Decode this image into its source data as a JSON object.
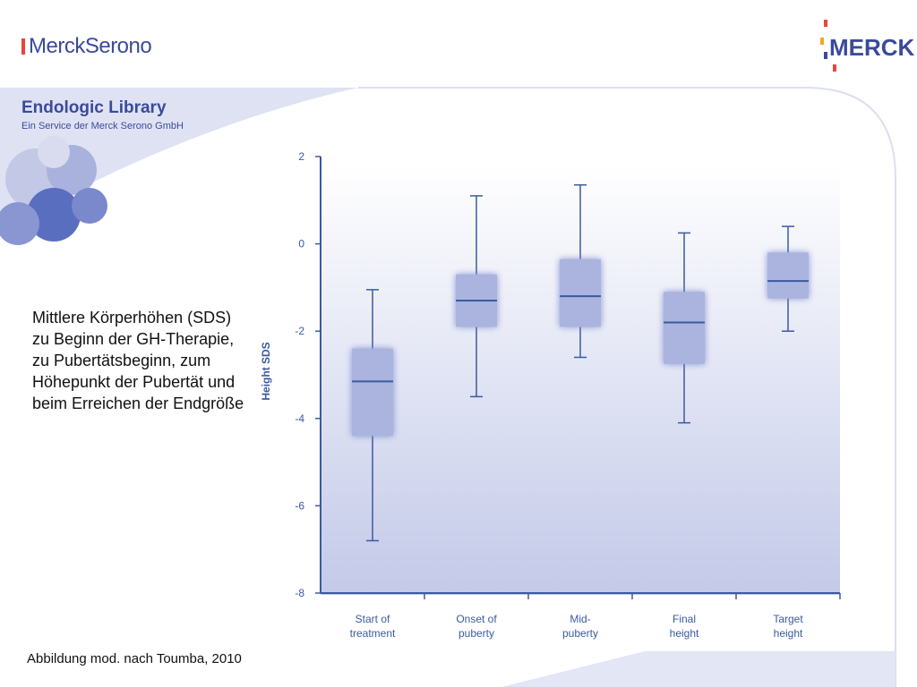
{
  "header": {
    "brand_left": "MerckSerono",
    "brand_right": "MERCK",
    "title": "Endologic Library",
    "subtitle": "Ein Service der Merck Serono GmbH"
  },
  "description": "Mittlere Körperhöhen (SDS) zu Beginn der GH-Therapie, zu Pubertätsbeginn, zum Höhepunkt der Pubertät und beim Erreichen der Endgröße",
  "credit": "Abbildung mod. nach Toumba, 2010",
  "colors": {
    "brand": "#3a4a9c",
    "axis": "#3a5aa0",
    "box_fill": "#aab4de",
    "box_line": "#3a5aa0"
  },
  "chart_data": {
    "type": "box",
    "ylabel": "Height SDS",
    "ylim": [
      -8,
      2
    ],
    "yticks": [
      2,
      0,
      -2,
      -4,
      -6,
      -8
    ],
    "categories": [
      [
        "Start of",
        "treatment"
      ],
      [
        "Onset of",
        "puberty"
      ],
      [
        "Mid-",
        "puberty"
      ],
      [
        "Final",
        "height"
      ],
      [
        "Target",
        "height"
      ]
    ],
    "boxes": [
      {
        "min": -6.8,
        "q1": -4.4,
        "median": -3.15,
        "q3": -2.4,
        "max": -1.05
      },
      {
        "min": -3.5,
        "q1": -1.9,
        "median": -1.3,
        "q3": -0.7,
        "max": 1.1
      },
      {
        "min": -2.6,
        "q1": -1.9,
        "median": -1.2,
        "q3": -0.35,
        "max": 1.35
      },
      {
        "min": -4.1,
        "q1": -2.75,
        "median": -1.8,
        "q3": -1.1,
        "max": 0.25
      },
      {
        "min": -2.0,
        "q1": -1.25,
        "median": -0.85,
        "q3": -0.2,
        "max": 0.4
      }
    ]
  }
}
